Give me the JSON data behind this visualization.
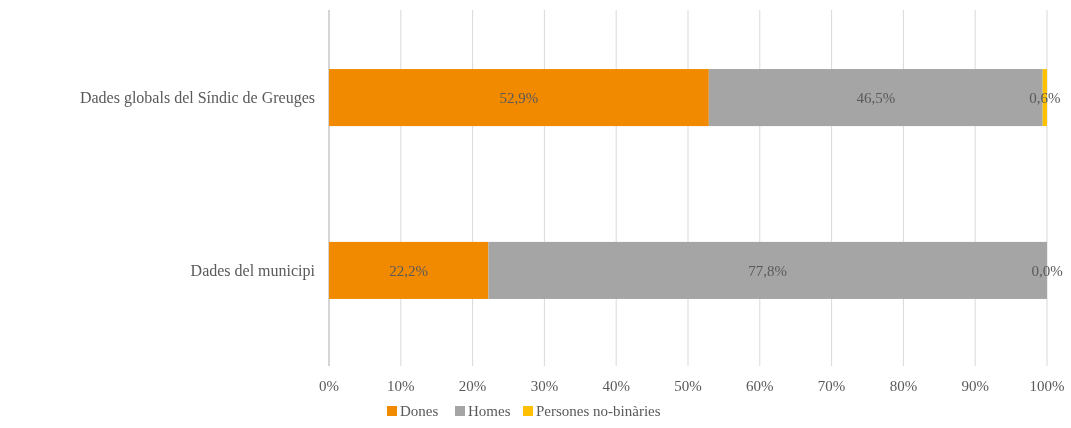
{
  "chart_data": {
    "type": "bar",
    "orientation": "horizontal",
    "stacked": true,
    "categories": [
      "Dades globals del Síndic de Greuges",
      "Dades del municipi"
    ],
    "series": [
      {
        "name": "Dones",
        "color": "#f28a00",
        "values": [
          52.9,
          22.2
        ],
        "value_labels": [
          "52,9%",
          "22,2%"
        ]
      },
      {
        "name": "Homes",
        "color": "#a5a5a5",
        "values": [
          46.5,
          77.8
        ],
        "value_labels": [
          "46,5%",
          "77,8%"
        ]
      },
      {
        "name": "Persones no-binàries",
        "color": "#ffc000",
        "values": [
          0.6,
          0.0
        ],
        "value_labels": [
          "0,6%",
          "0,0%"
        ]
      }
    ],
    "xlim": [
      0,
      100
    ],
    "xticks": [
      {
        "value": 0,
        "label": "0%"
      },
      {
        "value": 10,
        "label": "10%"
      },
      {
        "value": 20,
        "label": "20%"
      },
      {
        "value": 30,
        "label": "30%"
      },
      {
        "value": 40,
        "label": "40%"
      },
      {
        "value": 50,
        "label": "50%"
      },
      {
        "value": 60,
        "label": "60%"
      },
      {
        "value": 70,
        "label": "70%"
      },
      {
        "value": 80,
        "label": "80%"
      },
      {
        "value": 90,
        "label": "90%"
      },
      {
        "value": 100,
        "label": "100%"
      }
    ],
    "grid": "x",
    "legend": "bottom"
  }
}
